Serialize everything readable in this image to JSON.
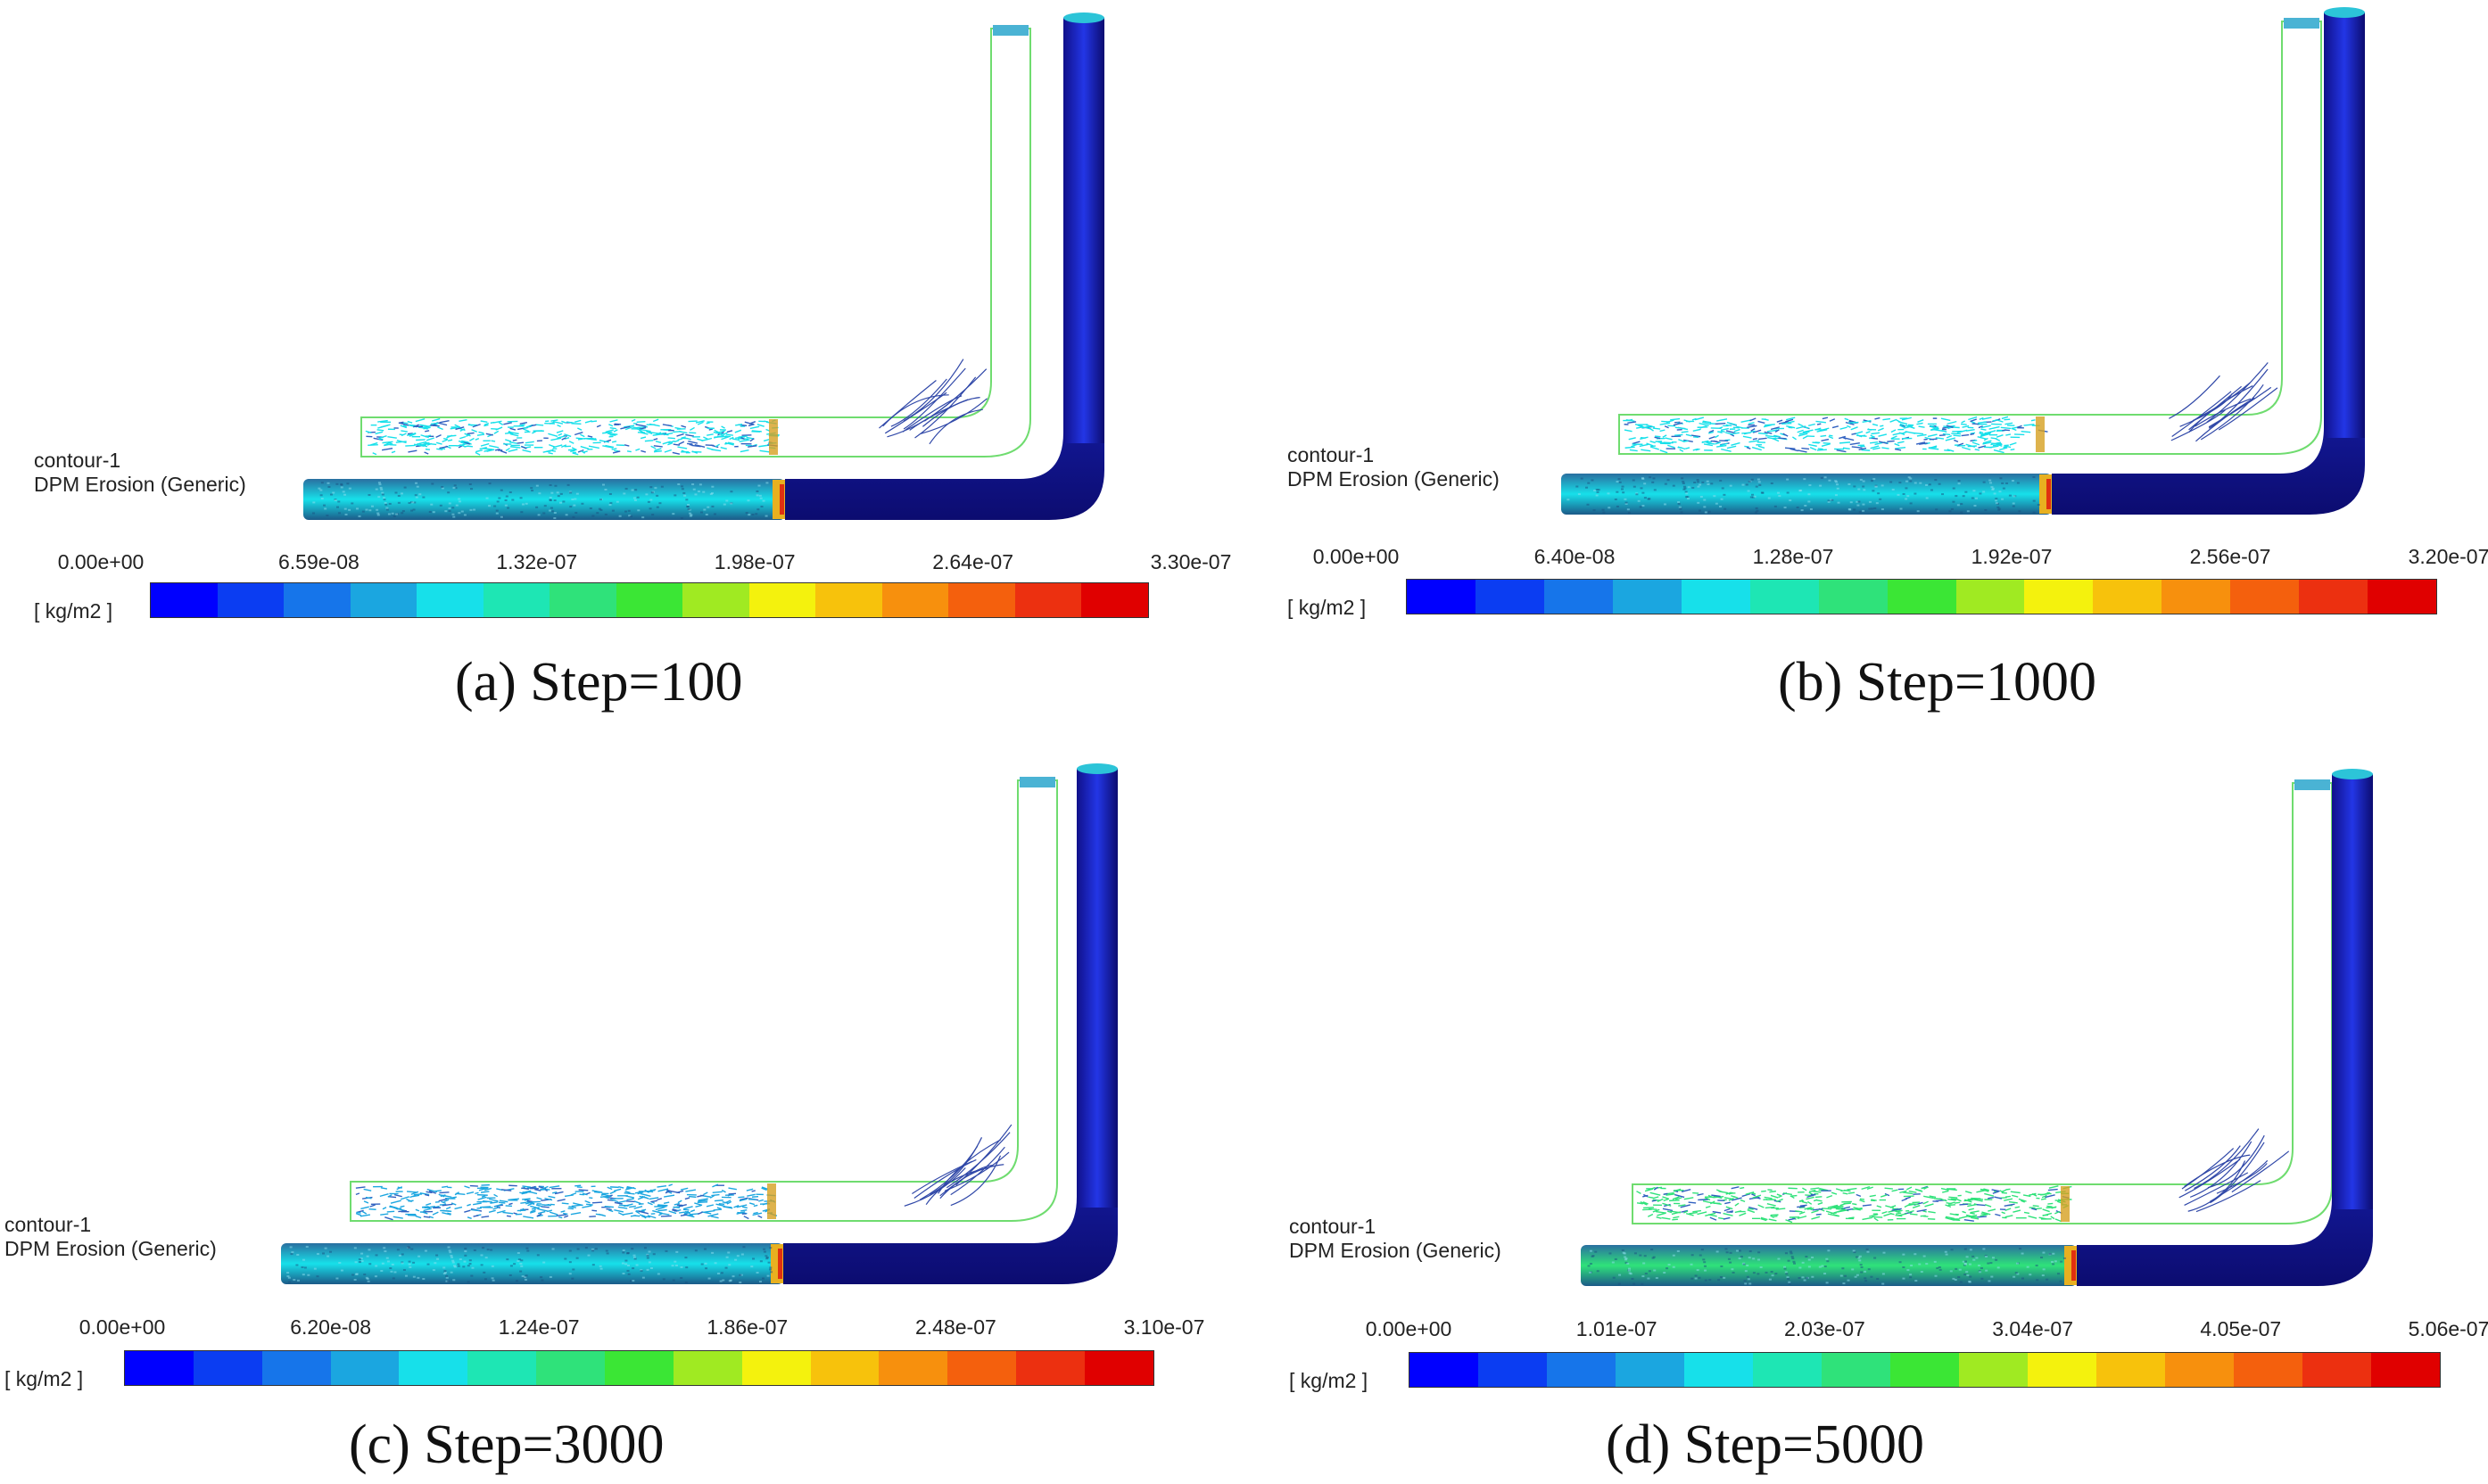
{
  "colormap": [
    "#0000ff",
    "#0b3df2",
    "#1675ea",
    "#1ba6e0",
    "#17e0ea",
    "#1ee6b4",
    "#2fe27a",
    "#3be635",
    "#a0ea22",
    "#f4f20d",
    "#f7c20c",
    "#f7900d",
    "#f4600d",
    "#ec3010",
    "#e00000"
  ],
  "panels": [
    {
      "id": "a",
      "caption": "(a) Step=100",
      "contour_name": "contour-1",
      "variable": "DPM Erosion (Generic)",
      "unit": "[ kg/m2 ]",
      "ticks": [
        "0.00e+00",
        "6.59e-08",
        "1.32e-07",
        "1.98e-07",
        "2.64e-07",
        "3.30e-07"
      ],
      "inlet_level": 0.27,
      "particle_level": 0.25
    },
    {
      "id": "b",
      "caption": "(b) Step=1000",
      "contour_name": "contour-1",
      "variable": "DPM Erosion (Generic)",
      "unit": "[ kg/m2 ]",
      "ticks": [
        "0.00e+00",
        "6.40e-08",
        "1.28e-07",
        "1.92e-07",
        "2.56e-07",
        "3.20e-07"
      ],
      "inlet_level": 0.28,
      "particle_level": 0.26
    },
    {
      "id": "c",
      "caption": "(c) Step=3000",
      "contour_name": "contour-1",
      "variable": "DPM Erosion (Generic)",
      "unit": "[ kg/m2 ]",
      "ticks": [
        "0.00e+00",
        "6.20e-08",
        "1.24e-07",
        "1.86e-07",
        "2.48e-07",
        "3.10e-07"
      ],
      "inlet_level": 0.25,
      "particle_level": 0.24
    },
    {
      "id": "d",
      "caption": "(d) Step=5000",
      "contour_name": "contour-1",
      "variable": "DPM Erosion (Generic)",
      "unit": "[ kg/m2 ]",
      "ticks": [
        "0.00e+00",
        "1.01e-07",
        "2.03e-07",
        "3.04e-07",
        "4.05e-07",
        "5.06e-07"
      ],
      "inlet_level": 0.43,
      "particle_level": 0.45
    }
  ]
}
